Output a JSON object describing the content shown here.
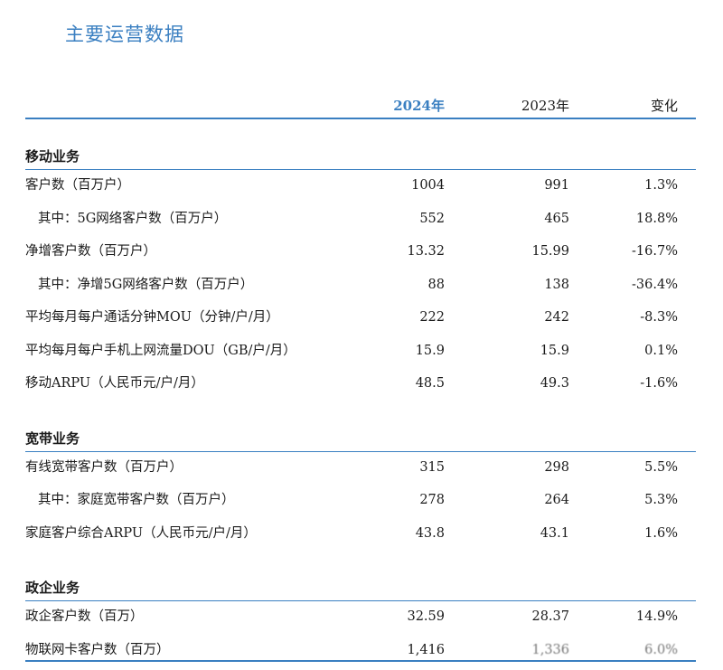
{
  "title": "主要运营数据",
  "header": {
    "col1": "2024年",
    "col2": "2023年",
    "col3": "变化"
  },
  "sections": [
    {
      "title": "移动业务",
      "rows": [
        {
          "label": "客户数（百万户）",
          "v1": "1004",
          "v2": "991",
          "v3": "1.3%",
          "indent": false
        },
        {
          "label": "其中：5G网络客户数（百万户）",
          "v1": "552",
          "v2": "465",
          "v3": "18.8%",
          "indent": true
        },
        {
          "label": "净增客户数（百万户）",
          "v1": "13.32",
          "v2": "15.99",
          "v3": "-16.7%",
          "indent": false
        },
        {
          "label": "其中：净增5G网络客户数（百万户）",
          "v1": "88",
          "v2": "138",
          "v3": "-36.4%",
          "indent": true
        },
        {
          "label": "平均每月每户通话分钟MOU（分钟/户/月）",
          "v1": "222",
          "v2": "242",
          "v3": "-8.3%",
          "indent": false
        },
        {
          "label": "平均每月每户手机上网流量DOU（GB/户/月）",
          "v1": "15.9",
          "v2": "15.9",
          "v3": "0.1%",
          "indent": false
        },
        {
          "label": "移动ARPU（人民币元/户/月）",
          "v1": "48.5",
          "v2": "49.3",
          "v3": "-1.6%",
          "indent": false
        }
      ]
    },
    {
      "title": "宽带业务",
      "rows": [
        {
          "label": "有线宽带客户数（百万户）",
          "v1": "315",
          "v2": "298",
          "v3": "5.5%",
          "indent": false
        },
        {
          "label": "其中：家庭宽带客户数（百万户）",
          "v1": "278",
          "v2": "264",
          "v3": "5.3%",
          "indent": true
        },
        {
          "label": "家庭客户综合ARPU（人民币元/户/月）",
          "v1": "43.8",
          "v2": "43.1",
          "v3": "1.6%",
          "indent": false
        }
      ]
    },
    {
      "title": "政企业务",
      "rows": [
        {
          "label": "政企客户数（百万）",
          "v1": "32.59",
          "v2": "28.37",
          "v3": "14.9%",
          "indent": false
        },
        {
          "label": "物联网卡客户数（百万）",
          "v1": "1,416",
          "v2": "1,336",
          "v3": "6.0%",
          "indent": false,
          "obscured": true
        }
      ]
    }
  ],
  "colors": {
    "accent": "#3a7fc1",
    "text": "#1a1a1a"
  }
}
